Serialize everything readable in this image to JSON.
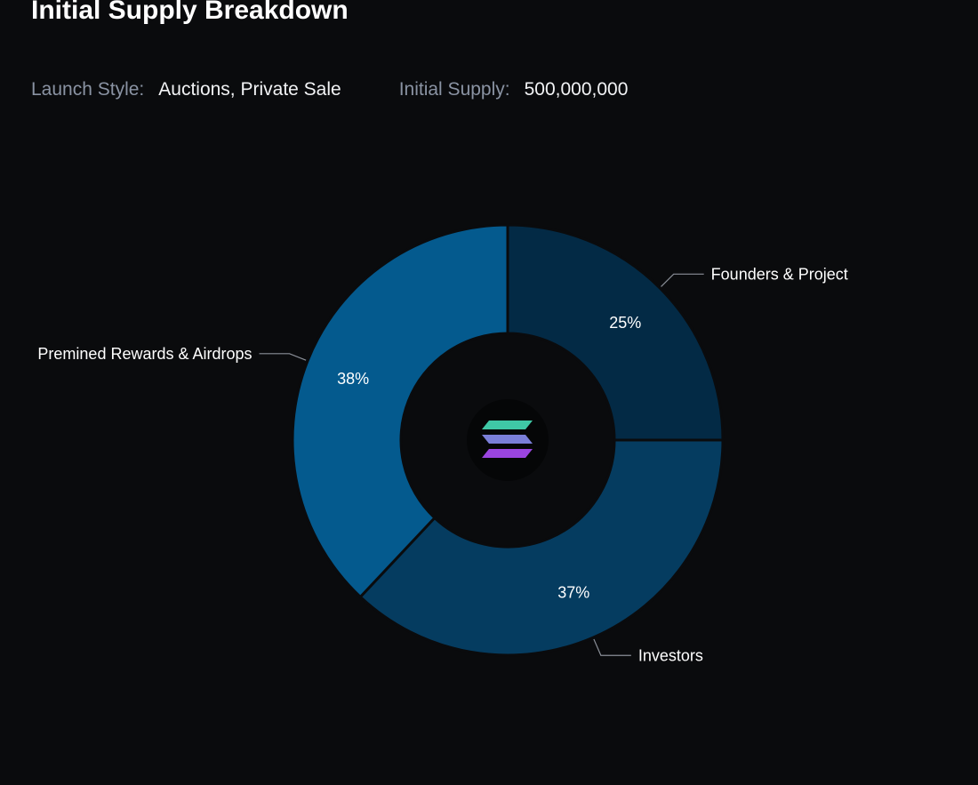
{
  "header": {
    "title": "Initial Supply Breakdown"
  },
  "meta": {
    "launch_style_label": "Launch Style:",
    "launch_style_value": "Auctions, Private Sale",
    "initial_supply_label": "Initial Supply:",
    "initial_supply_value": "500,000,000"
  },
  "center_icon": "solana-logo-icon",
  "colors": {
    "background": "#0a0b0d",
    "founders": "#032a45",
    "investors": "#053c60",
    "premined": "#045a8e",
    "leader_line": "#8a8f98",
    "logo_top": "#3fc8a6",
    "logo_mid": "#7a7fd8",
    "logo_bottom": "#9b45e0"
  },
  "chart_data": {
    "type": "pie",
    "donut": true,
    "categories": [
      "Founders & Project",
      "Investors",
      "Premined Rewards & Airdrops"
    ],
    "values": [
      25,
      37,
      38
    ],
    "value_labels": [
      "25%",
      "37%",
      "38%"
    ],
    "title": "",
    "legend": "none"
  }
}
